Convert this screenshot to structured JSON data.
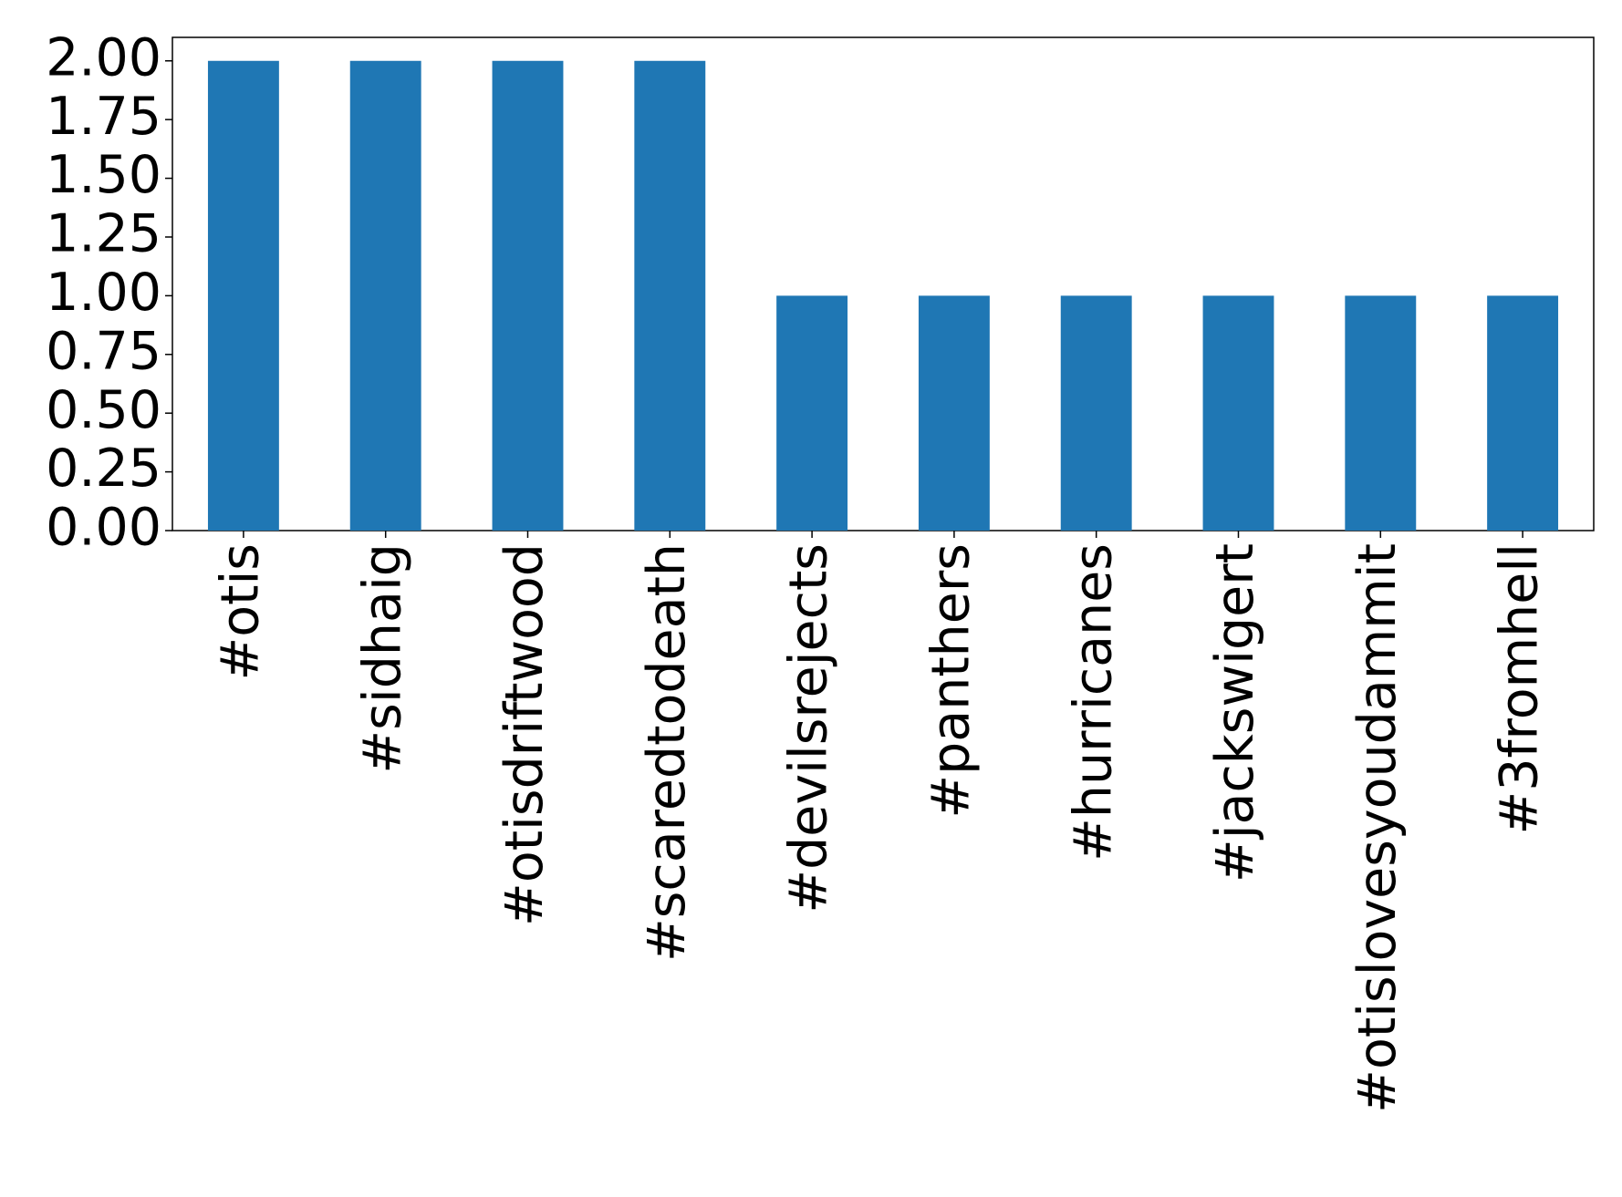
{
  "chart_data": {
    "type": "bar",
    "categories": [
      "#otis",
      "#sidhaig",
      "#otisdriftwood",
      "#scaredtodeath",
      "#devilsrejects",
      "#panthers",
      "#hurricanes",
      "#jackswigert",
      "#otislovesyoudammit",
      "#3fromhell"
    ],
    "values": [
      2,
      2,
      2,
      2,
      1,
      1,
      1,
      1,
      1,
      1
    ],
    "color": "#1f77b4",
    "ylim": [
      0,
      2.1
    ],
    "yticks": [
      {
        "value": 0,
        "label": "0.00"
      },
      {
        "value": 0.25,
        "label": "0.25"
      },
      {
        "value": 0.5,
        "label": "0.50"
      },
      {
        "value": 0.75,
        "label": "0.75"
      },
      {
        "value": 1,
        "label": "1.00"
      },
      {
        "value": 1.25,
        "label": "1.25"
      },
      {
        "value": 1.5,
        "label": "1.50"
      },
      {
        "value": 1.75,
        "label": "1.75"
      },
      {
        "value": 2,
        "label": "2.00"
      }
    ],
    "grid": false
  }
}
